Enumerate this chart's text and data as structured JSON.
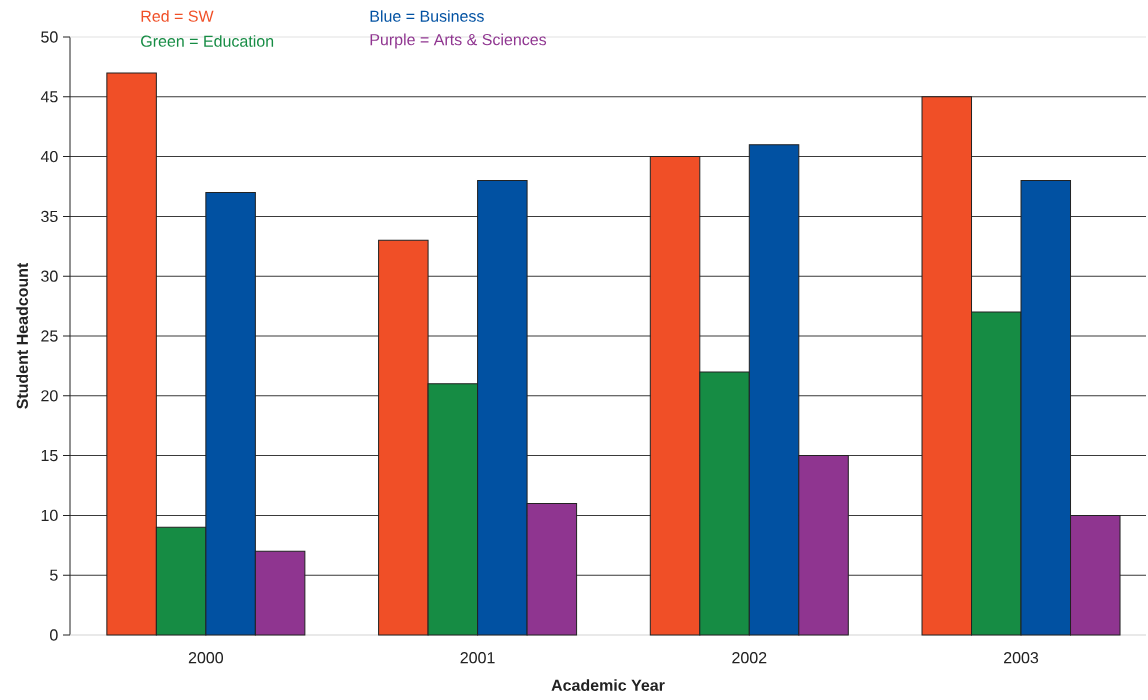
{
  "chart_data": {
    "type": "bar",
    "categories": [
      "2000",
      "2001",
      "2002",
      "2003"
    ],
    "series": [
      {
        "name": "Red = SW",
        "color": "#f04f27",
        "values": [
          47,
          33,
          40,
          45
        ]
      },
      {
        "name": "Green = Education",
        "color": "#168c44",
        "values": [
          9,
          21,
          22,
          27
        ]
      },
      {
        "name": "Blue = Business",
        "color": "#0151a2",
        "values": [
          37,
          38,
          41,
          38
        ]
      },
      {
        "name": "Purple = Arts & Sciences",
        "color": "#8f3590",
        "values": [
          7,
          11,
          15,
          10
        ]
      }
    ],
    "xlabel": "Academic Year",
    "ylabel": "Student Headcount",
    "ylim": [
      0,
      50
    ],
    "yticks": [
      0,
      5,
      10,
      15,
      20,
      25,
      30,
      35,
      40,
      45,
      50
    ],
    "grid": "y",
    "legend": "top left"
  }
}
